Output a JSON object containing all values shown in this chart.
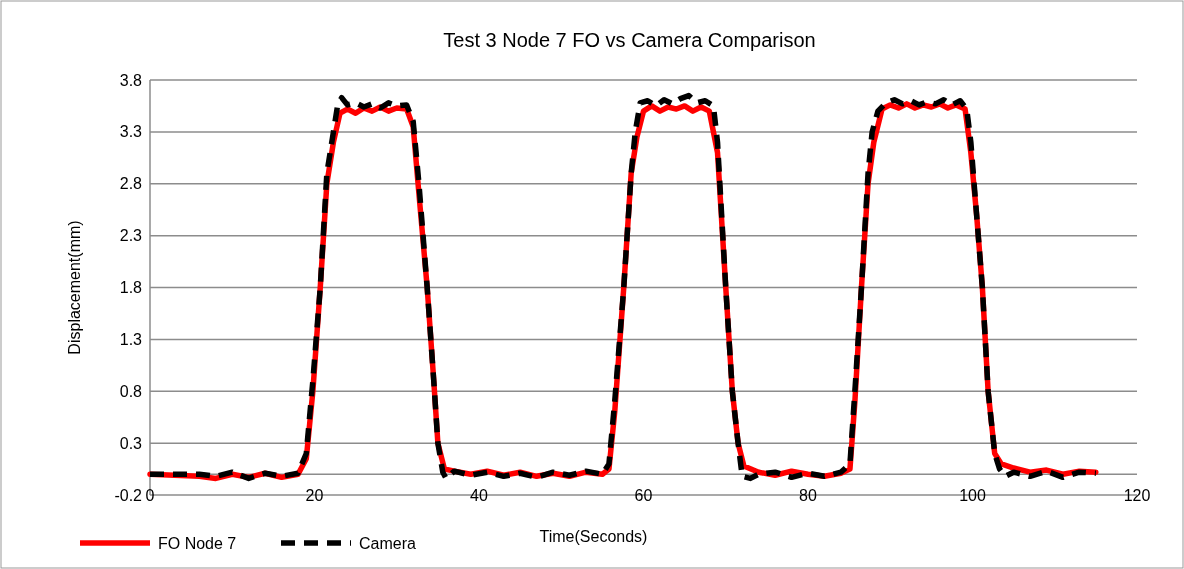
{
  "chart_data": {
    "type": "line",
    "title": "Test 3 Node 7 FO vs Camera Comparison",
    "xlabel": "Time(Seconds)",
    "ylabel": "Displacement(mm)",
    "xlim": [
      0,
      120
    ],
    "xticks": [
      0,
      20,
      40,
      60,
      80,
      100,
      120
    ],
    "ylim": [
      -0.2,
      3.8
    ],
    "yticks": [
      -0.2,
      0.3,
      0.8,
      1.3,
      1.8,
      2.3,
      2.8,
      3.3,
      3.8
    ],
    "grid": "y",
    "legend": "bottom left",
    "series": [
      {
        "name": "FO Node 7",
        "color": "#ff0000",
        "line_style": "solid",
        "x": [
          0,
          6,
          8,
          10,
          12,
          14,
          16,
          18,
          19,
          19.8,
          20.7,
          21.5,
          22.3,
          23.1,
          24,
          25,
          26,
          27,
          28,
          29,
          30,
          31.2,
          32,
          32.7,
          33.7,
          34.5,
          35,
          35.8,
          37,
          39,
          41,
          43,
          45,
          47,
          49,
          51,
          53,
          55,
          55.8,
          56.5,
          57.6,
          58.5,
          59.2,
          60,
          61,
          62,
          63,
          64,
          65,
          66,
          67,
          68,
          69,
          70,
          70.8,
          71.5,
          72.2,
          74,
          76,
          78,
          80,
          82,
          84,
          85.1,
          85.7,
          86.5,
          87.3,
          88,
          89,
          90,
          91,
          92,
          93,
          94,
          95,
          96,
          97,
          98,
          99.1,
          99.8,
          100.5,
          101.2,
          101.9,
          102.7,
          103.5,
          105,
          107,
          109,
          111,
          113,
          115
        ],
        "values": [
          0,
          -0.02,
          -0.04,
          0,
          -0.03,
          0.01,
          -0.03,
          0,
          0.15,
          0.8,
          1.8,
          2.8,
          3.2,
          3.48,
          3.52,
          3.48,
          3.53,
          3.5,
          3.54,
          3.5,
          3.53,
          3.52,
          3.35,
          2.7,
          1.8,
          0.9,
          0.3,
          0.05,
          0.03,
          0,
          0.03,
          -0.01,
          0.02,
          -0.02,
          0.01,
          -0.02,
          0.02,
          0,
          0.05,
          0.6,
          1.8,
          2.9,
          3.25,
          3.5,
          3.55,
          3.5,
          3.54,
          3.52,
          3.55,
          3.5,
          3.54,
          3.5,
          3.1,
          1.8,
          0.8,
          0.3,
          0.08,
          0.02,
          -0.01,
          0.03,
          0,
          -0.02,
          0.01,
          0.05,
          0.7,
          1.8,
          2.8,
          3.2,
          3.52,
          3.56,
          3.53,
          3.57,
          3.53,
          3.56,
          3.54,
          3.57,
          3.53,
          3.56,
          3.52,
          3.1,
          2.5,
          1.8,
          0.8,
          0.2,
          0.1,
          0.06,
          0.02,
          0.04,
          0,
          0.03,
          0.02
        ]
      },
      {
        "name": "Camera",
        "color": "#000000",
        "line_style": "dashed",
        "x": [
          0,
          6,
          8,
          10,
          12,
          14,
          16,
          18,
          19,
          19.8,
          20.7,
          21.5,
          22.3,
          22.8,
          23.3,
          24,
          25,
          26,
          27,
          28,
          29,
          30,
          31.2,
          32,
          32.7,
          33.7,
          34.5,
          35,
          35.6,
          36,
          37,
          39,
          41,
          43,
          45,
          47,
          49,
          51,
          53,
          55,
          55.8,
          56.5,
          57.6,
          58.5,
          59,
          59.6,
          60.5,
          61.5,
          62.5,
          63.5,
          64.5,
          65.5,
          66.5,
          67.5,
          68.5,
          69,
          70,
          70.8,
          71.5,
          72,
          73,
          74,
          76,
          78,
          80,
          82,
          84,
          85.1,
          85.7,
          86.5,
          87.3,
          87.8,
          88.5,
          89.5,
          90.5,
          91.5,
          92.5,
          93.5,
          94.5,
          95.5,
          96.5,
          97.5,
          98.5,
          99.3,
          99.8,
          100.5,
          101.2,
          101.9,
          102.7,
          103.3,
          104,
          105,
          107,
          109,
          111,
          113,
          115
        ],
        "values": [
          0,
          0,
          -0.02,
          0.02,
          -0.04,
          0.01,
          -0.02,
          0.01,
          0.2,
          0.9,
          1.8,
          2.9,
          3.3,
          3.55,
          3.63,
          3.56,
          3.58,
          3.54,
          3.57,
          3.53,
          3.58,
          3.55,
          3.56,
          3.4,
          2.8,
          1.8,
          0.9,
          0.3,
          0.02,
          -0.04,
          0.03,
          -0.01,
          0.02,
          -0.02,
          0.01,
          -0.03,
          0.02,
          -0.01,
          0.03,
          0,
          0.1,
          0.7,
          1.8,
          2.9,
          3.3,
          3.58,
          3.6,
          3.55,
          3.61,
          3.57,
          3.62,
          3.65,
          3.58,
          3.6,
          3.55,
          3.2,
          1.8,
          0.8,
          0.3,
          -0.02,
          -0.04,
          0,
          0.02,
          -0.03,
          0.01,
          -0.02,
          0.02,
          0.1,
          0.8,
          1.8,
          2.9,
          3.3,
          3.5,
          3.58,
          3.61,
          3.57,
          3.6,
          3.56,
          3.59,
          3.57,
          3.61,
          3.56,
          3.6,
          3.52,
          3.2,
          2.5,
          1.8,
          0.8,
          0.2,
          0.05,
          -0.02,
          0.02,
          -0.02,
          0.03,
          -0.03,
          0.02,
          0.01
        ]
      }
    ]
  }
}
